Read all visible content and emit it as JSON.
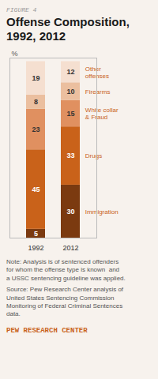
{
  "chart_data": {
    "type": "bar",
    "stacked": true,
    "title": "Offense Composition,\n1992, 2012",
    "ylabel": "%",
    "categories": [
      "1992",
      "2012"
    ],
    "series": [
      {
        "name": "Immigration",
        "color": "#7b3a10",
        "values": [
          5,
          30
        ]
      },
      {
        "name": "Drugs",
        "color": "#c9621a",
        "values": [
          45,
          33
        ]
      },
      {
        "name": "White collar\n& Fraud",
        "color": "#e09060",
        "values": [
          23,
          15
        ]
      },
      {
        "name": "Firearms",
        "color": "#ebbf9f",
        "values": [
          8,
          10
        ]
      },
      {
        "name": "Other\noffenses",
        "color": "#f5dfd0",
        "values": [
          19,
          12
        ]
      }
    ],
    "ylim": [
      0,
      102
    ],
    "yticks": [],
    "tick_labels": "x",
    "data_labels": true,
    "legend": "right",
    "grid": false,
    "annotations": [
      "FIGURE 4",
      "Note: Analysis is of sentenced offenders\nfor whom the offense type is known  and\na USSC sentencing guideline was applied.",
      "Source: Pew Research Center analysis of\nUnited States Sentencing Commission\nMonitoring of Federal Criminal Sentences\ndata.",
      "PEW RESEARCH CENTER"
    ]
  }
}
